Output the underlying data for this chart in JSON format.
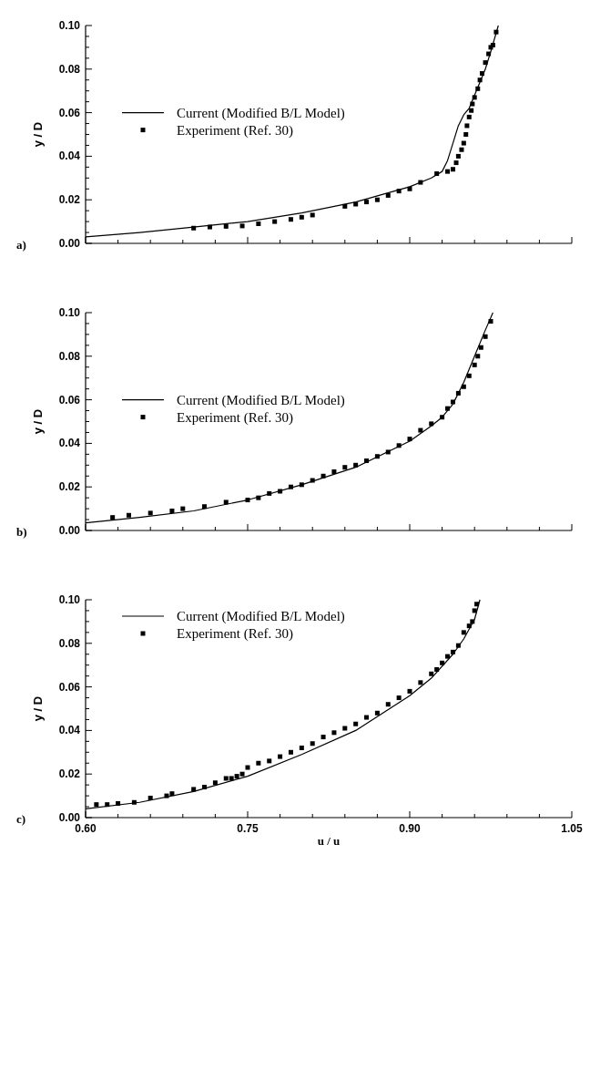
{
  "chart_data": [
    {
      "type": "line",
      "ylabel": "y / D",
      "annotations": [
        "a)"
      ],
      "xlim": [
        0.6,
        1.05
      ],
      "xticks": [
        0.6,
        {
          "value": 0.63,
          "label": null
        },
        {
          "value": 0.66,
          "label": null
        },
        {
          "value": 0.69,
          "label": null
        },
        {
          "value": 0.72,
          "label": null
        },
        0.75,
        {
          "value": 0.78,
          "label": null
        },
        {
          "value": 0.81,
          "label": null
        },
        {
          "value": 0.84,
          "label": null
        },
        {
          "value": 0.87,
          "label": null
        },
        0.9,
        {
          "value": 0.93,
          "label": null
        },
        {
          "value": 0.96,
          "label": null
        },
        {
          "value": 0.99,
          "label": null
        },
        {
          "value": 1.02,
          "label": null
        },
        1.05
      ],
      "ylim": [
        0,
        0.1
      ],
      "yticks": [
        {
          "value": 0,
          "label": "0.00"
        },
        {
          "value": 0.02,
          "label": "0.02"
        },
        {
          "value": 0.04,
          "label": "0.04"
        },
        {
          "value": 0.06,
          "label": "0.06"
        },
        {
          "value": 0.08,
          "label": "0.08"
        },
        {
          "value": 0.1,
          "label": "0.10"
        }
      ],
      "tick_labels": "y",
      "legend": "left",
      "series": [
        {
          "name": "Current (Modified B/L Model)",
          "color": "#000000",
          "marker": "none",
          "line_style": "solid",
          "x": [
            0.6,
            0.65,
            0.7,
            0.75,
            0.8,
            0.85,
            0.9,
            0.92,
            0.93,
            0.935,
            0.94,
            0.945,
            0.95,
            0.955,
            0.96,
            0.97,
            0.975,
            0.982
          ],
          "values": [
            0.003,
            0.005,
            0.0075,
            0.01,
            0.014,
            0.019,
            0.026,
            0.03,
            0.033,
            0.038,
            0.046,
            0.054,
            0.059,
            0.062,
            0.068,
            0.08,
            0.088,
            0.1
          ]
        },
        {
          "name": "Experiment (Ref. 30)",
          "type": "scatter",
          "color": "#000000",
          "marker": "square",
          "x": [
            0.7,
            0.715,
            0.73,
            0.745,
            0.76,
            0.775,
            0.79,
            0.8,
            0.81,
            0.84,
            0.85,
            0.86,
            0.87,
            0.88,
            0.89,
            0.9,
            0.91,
            0.925,
            0.935,
            0.94,
            0.943,
            0.945,
            0.948,
            0.95,
            0.952,
            0.953,
            0.955,
            0.957,
            0.958,
            0.96,
            0.963,
            0.965,
            0.967,
            0.97,
            0.973,
            0.975,
            0.977,
            0.98
          ],
          "values": [
            0.007,
            0.0075,
            0.0078,
            0.008,
            0.009,
            0.01,
            0.011,
            0.012,
            0.013,
            0.017,
            0.018,
            0.019,
            0.02,
            0.022,
            0.024,
            0.025,
            0.028,
            0.032,
            0.033,
            0.034,
            0.037,
            0.04,
            0.043,
            0.046,
            0.05,
            0.054,
            0.058,
            0.061,
            0.064,
            0.067,
            0.071,
            0.075,
            0.078,
            0.083,
            0.087,
            0.09,
            0.091,
            0.097
          ]
        }
      ]
    },
    {
      "type": "line",
      "ylabel": "y / D",
      "annotations": [
        "b)"
      ],
      "xlim": [
        0.6,
        1.05
      ],
      "xticks": [
        0.6,
        {
          "value": 0.63,
          "label": null
        },
        {
          "value": 0.66,
          "label": null
        },
        {
          "value": 0.69,
          "label": null
        },
        {
          "value": 0.72,
          "label": null
        },
        0.75,
        {
          "value": 0.78,
          "label": null
        },
        {
          "value": 0.81,
          "label": null
        },
        {
          "value": 0.84,
          "label": null
        },
        {
          "value": 0.87,
          "label": null
        },
        0.9,
        {
          "value": 0.93,
          "label": null
        },
        {
          "value": 0.96,
          "label": null
        },
        {
          "value": 0.99,
          "label": null
        },
        {
          "value": 1.02,
          "label": null
        },
        1.05
      ],
      "ylim": [
        0,
        0.1
      ],
      "yticks": [
        {
          "value": 0,
          "label": "0.00"
        },
        {
          "value": 0.02,
          "label": "0.02"
        },
        {
          "value": 0.04,
          "label": "0.04"
        },
        {
          "value": 0.06,
          "label": "0.06"
        },
        {
          "value": 0.08,
          "label": "0.08"
        },
        {
          "value": 0.1,
          "label": "0.10"
        }
      ],
      "tick_labels": "y",
      "legend": "left",
      "series": [
        {
          "name": "Current (Modified B/L Model)",
          "color": "#000000",
          "marker": "none",
          "line_style": "solid",
          "x": [
            0.6,
            0.65,
            0.7,
            0.75,
            0.8,
            0.85,
            0.9,
            0.92,
            0.93,
            0.94,
            0.95,
            0.96,
            0.97,
            0.977
          ],
          "values": [
            0.0035,
            0.006,
            0.009,
            0.014,
            0.021,
            0.029,
            0.041,
            0.048,
            0.052,
            0.058,
            0.068,
            0.08,
            0.092,
            0.1
          ]
        },
        {
          "name": "Experiment (Ref. 30)",
          "type": "scatter",
          "color": "#000000",
          "marker": "square",
          "x": [
            0.625,
            0.64,
            0.66,
            0.68,
            0.69,
            0.71,
            0.73,
            0.75,
            0.76,
            0.77,
            0.78,
            0.79,
            0.8,
            0.81,
            0.82,
            0.83,
            0.84,
            0.85,
            0.86,
            0.87,
            0.88,
            0.89,
            0.9,
            0.91,
            0.92,
            0.93,
            0.935,
            0.94,
            0.945,
            0.95,
            0.955,
            0.96,
            0.963,
            0.966,
            0.97,
            0.975
          ],
          "values": [
            0.006,
            0.007,
            0.008,
            0.009,
            0.01,
            0.011,
            0.013,
            0.014,
            0.015,
            0.017,
            0.018,
            0.02,
            0.021,
            0.023,
            0.025,
            0.027,
            0.029,
            0.03,
            0.032,
            0.034,
            0.036,
            0.039,
            0.042,
            0.046,
            0.049,
            0.052,
            0.056,
            0.059,
            0.063,
            0.066,
            0.071,
            0.076,
            0.08,
            0.084,
            0.089,
            0.096
          ]
        }
      ]
    },
    {
      "type": "line",
      "ylabel": "y / D",
      "xlabel": "u / u",
      "annotations": [
        "c)"
      ],
      "xlim": [
        0.6,
        1.05
      ],
      "xticks": [
        {
          "value": 0.6,
          "label": "0.60"
        },
        {
          "value": 0.63,
          "label": null
        },
        {
          "value": 0.66,
          "label": null
        },
        {
          "value": 0.69,
          "label": null
        },
        {
          "value": 0.72,
          "label": null
        },
        {
          "value": 0.75,
          "label": "0.75"
        },
        {
          "value": 0.78,
          "label": null
        },
        {
          "value": 0.81,
          "label": null
        },
        {
          "value": 0.84,
          "label": null
        },
        {
          "value": 0.87,
          "label": null
        },
        {
          "value": 0.9,
          "label": "0.90"
        },
        {
          "value": 0.93,
          "label": null
        },
        {
          "value": 0.96,
          "label": null
        },
        {
          "value": 0.99,
          "label": null
        },
        {
          "value": 1.02,
          "label": null
        },
        {
          "value": 1.05,
          "label": "1.05"
        }
      ],
      "ylim": [
        0,
        0.1
      ],
      "yticks": [
        {
          "value": 0,
          "label": "0.00"
        },
        {
          "value": 0.02,
          "label": "0.02"
        },
        {
          "value": 0.04,
          "label": "0.04"
        },
        {
          "value": 0.06,
          "label": "0.06"
        },
        {
          "value": 0.08,
          "label": "0.08"
        },
        {
          "value": 0.1,
          "label": "0.10"
        }
      ],
      "legend": "top left",
      "series": [
        {
          "name": "Current (Modified B/L Model)",
          "color": "#000000",
          "marker": "none",
          "line_style": "solid",
          "x": [
            0.6,
            0.65,
            0.7,
            0.75,
            0.8,
            0.85,
            0.9,
            0.92,
            0.94,
            0.95,
            0.96,
            0.965
          ],
          "values": [
            0.004,
            0.007,
            0.012,
            0.019,
            0.029,
            0.04,
            0.056,
            0.064,
            0.075,
            0.082,
            0.091,
            0.1
          ]
        },
        {
          "name": "Experiment (Ref. 30)",
          "type": "scatter",
          "color": "#000000",
          "marker": "square",
          "x": [
            0.61,
            0.62,
            0.63,
            0.645,
            0.66,
            0.675,
            0.68,
            0.7,
            0.71,
            0.72,
            0.73,
            0.735,
            0.74,
            0.745,
            0.75,
            0.76,
            0.77,
            0.78,
            0.79,
            0.8,
            0.81,
            0.82,
            0.83,
            0.84,
            0.85,
            0.86,
            0.87,
            0.88,
            0.89,
            0.9,
            0.91,
            0.92,
            0.925,
            0.93,
            0.935,
            0.94,
            0.945,
            0.95,
            0.955,
            0.958,
            0.96,
            0.962
          ],
          "values": [
            0.006,
            0.006,
            0.0065,
            0.007,
            0.009,
            0.01,
            0.011,
            0.013,
            0.014,
            0.016,
            0.018,
            0.018,
            0.019,
            0.02,
            0.023,
            0.025,
            0.026,
            0.028,
            0.03,
            0.032,
            0.034,
            0.037,
            0.039,
            0.041,
            0.043,
            0.046,
            0.048,
            0.052,
            0.055,
            0.058,
            0.062,
            0.066,
            0.068,
            0.071,
            0.074,
            0.076,
            0.079,
            0.085,
            0.088,
            0.09,
            0.095,
            0.098
          ]
        }
      ]
    }
  ]
}
